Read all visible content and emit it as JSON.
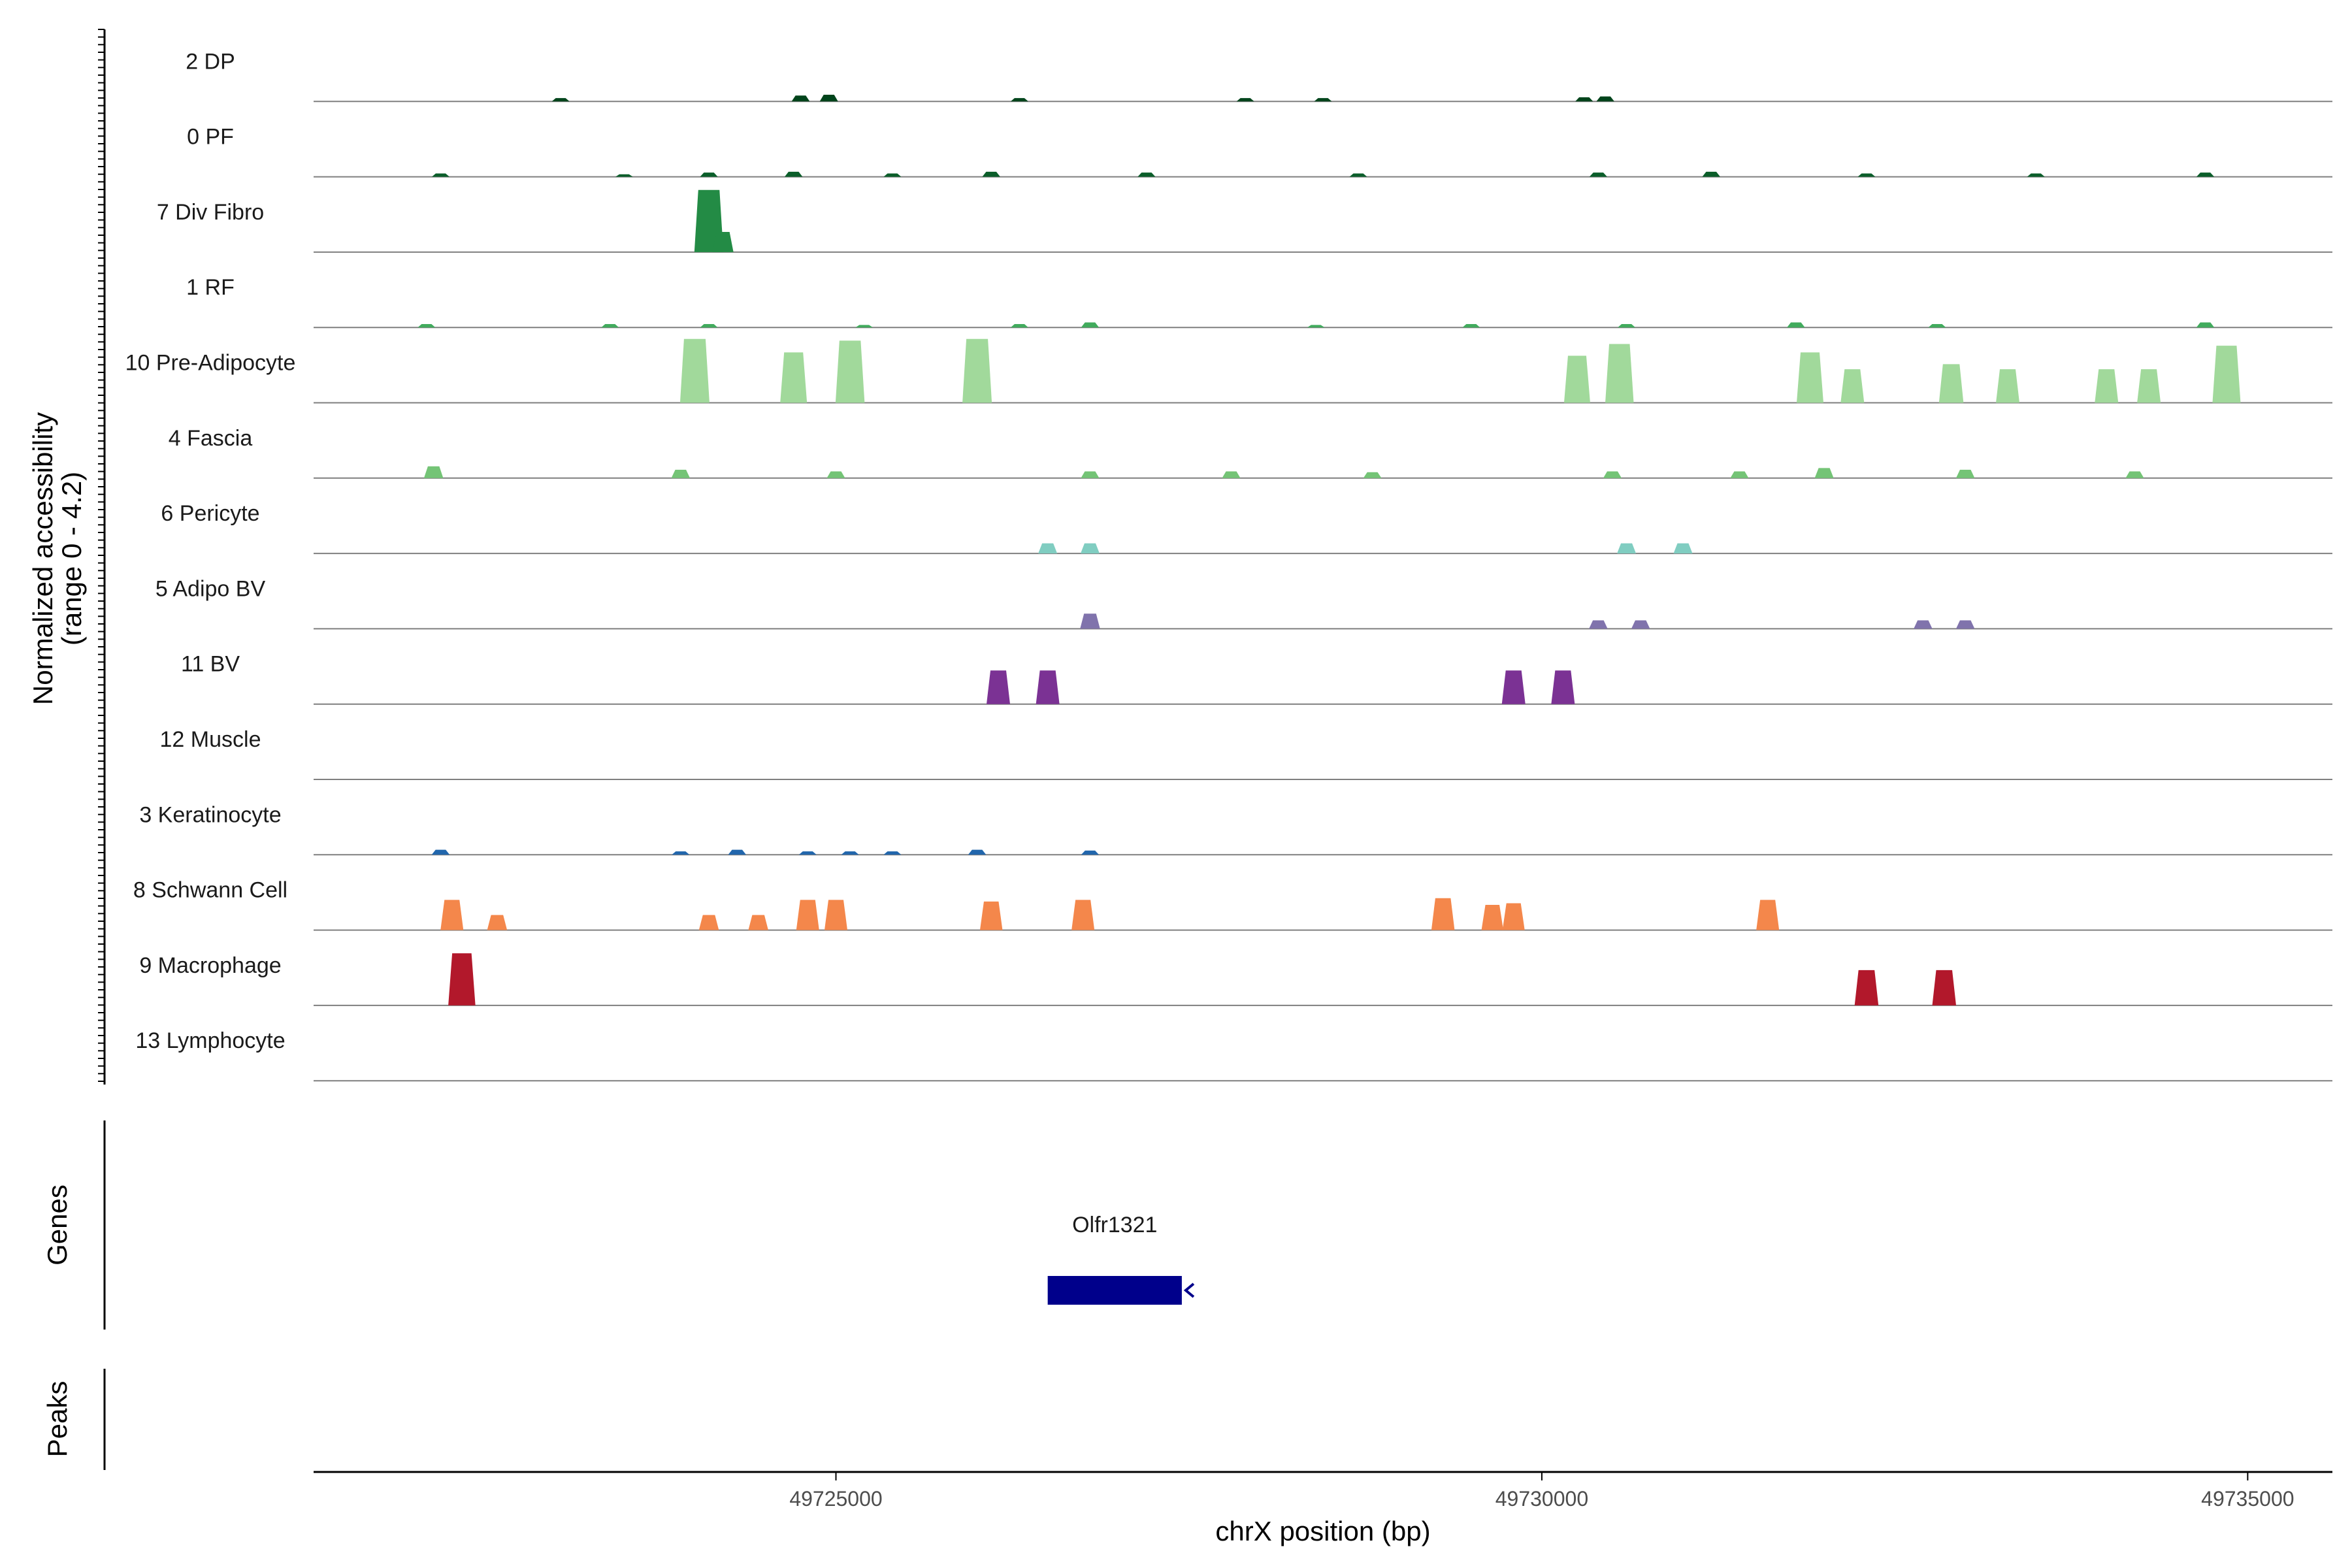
{
  "chart_data": {
    "type": "area",
    "title": "",
    "ylabel_line1": "Normalized accessibility",
    "ylabel_line2": "(range 0 - 4.2)",
    "xlabel": "chrX position (bp)",
    "xlim": [
      49721300,
      49735600
    ],
    "ylim": [
      0,
      4.2
    ],
    "xticks": [
      {
        "value": 49725000,
        "label": "49725000"
      },
      {
        "value": 49730000,
        "label": "49730000"
      },
      {
        "value": 49735000,
        "label": "49735000"
      }
    ],
    "panel_labels": {
      "genes": "Genes",
      "peaks": "Peaks"
    },
    "tracks": [
      {
        "name": "2 DP",
        "color": "#00441b",
        "peaks": [
          [
            49723050,
            0.2
          ],
          [
            49724750,
            0.35
          ],
          [
            49724950,
            0.4
          ],
          [
            49726300,
            0.2
          ],
          [
            49727900,
            0.2
          ],
          [
            49728450,
            0.2
          ],
          [
            49730300,
            0.25
          ],
          [
            49730450,
            0.3
          ]
        ]
      },
      {
        "name": "0 PF",
        "color": "#0b5e2a",
        "peaks": [
          [
            49722200,
            0.2
          ],
          [
            49723500,
            0.15
          ],
          [
            49724100,
            0.25
          ],
          [
            49724700,
            0.3
          ],
          [
            49725400,
            0.2
          ],
          [
            49726100,
            0.3
          ],
          [
            49727200,
            0.25
          ],
          [
            49728700,
            0.2
          ],
          [
            49730400,
            0.25
          ],
          [
            49731200,
            0.3
          ],
          [
            49732300,
            0.2
          ],
          [
            49733500,
            0.2
          ],
          [
            49734700,
            0.25
          ]
        ]
      },
      {
        "name": "7 Div Fibro",
        "color": "#238b45",
        "peaks": [
          [
            49724100,
            3.7
          ],
          [
            49724200,
            1.2
          ]
        ]
      },
      {
        "name": "1 RF",
        "color": "#41ab5d",
        "peaks": [
          [
            49722100,
            0.2
          ],
          [
            49723400,
            0.2
          ],
          [
            49724100,
            0.2
          ],
          [
            49725200,
            0.15
          ],
          [
            49726300,
            0.2
          ],
          [
            49726800,
            0.3
          ],
          [
            49728400,
            0.15
          ],
          [
            49729500,
            0.2
          ],
          [
            49730600,
            0.2
          ],
          [
            49731800,
            0.3
          ],
          [
            49732800,
            0.2
          ],
          [
            49734700,
            0.3
          ]
        ]
      },
      {
        "name": "10 Pre-Adipocyte",
        "color": "#a1d99b",
        "peaks": [
          [
            49724000,
            3.8
          ],
          [
            49724700,
            3.0
          ],
          [
            49725100,
            3.7
          ],
          [
            49726000,
            3.8
          ],
          [
            49730250,
            2.8
          ],
          [
            49730550,
            3.5
          ],
          [
            49731900,
            3.0
          ],
          [
            49732200,
            2.0
          ],
          [
            49732900,
            2.3
          ],
          [
            49733300,
            2.0
          ],
          [
            49734000,
            2.0
          ],
          [
            49734300,
            2.0
          ],
          [
            49734850,
            3.4
          ]
        ]
      },
      {
        "name": "4 Fascia",
        "color": "#74c476",
        "peaks": [
          [
            49722150,
            0.7
          ],
          [
            49723900,
            0.5
          ],
          [
            49725000,
            0.4
          ],
          [
            49726800,
            0.4
          ],
          [
            49727800,
            0.4
          ],
          [
            49728800,
            0.35
          ],
          [
            49730500,
            0.4
          ],
          [
            49731400,
            0.4
          ],
          [
            49732000,
            0.6
          ],
          [
            49733000,
            0.5
          ],
          [
            49734200,
            0.4
          ]
        ]
      },
      {
        "name": "6 Pericyte",
        "color": "#80cdc1",
        "peaks": [
          [
            49726500,
            0.6
          ],
          [
            49726800,
            0.6
          ],
          [
            49730600,
            0.6
          ],
          [
            49731000,
            0.6
          ]
        ]
      },
      {
        "name": "5 Adipo BV",
        "color": "#8073ac",
        "peaks": [
          [
            49726800,
            0.9
          ],
          [
            49730400,
            0.5
          ],
          [
            49730700,
            0.5
          ],
          [
            49732700,
            0.5
          ],
          [
            49733000,
            0.5
          ]
        ]
      },
      {
        "name": "11 BV",
        "color": "#7b3294",
        "peaks": [
          [
            49726150,
            2.0
          ],
          [
            49726500,
            2.0
          ],
          [
            49729800,
            2.0
          ],
          [
            49730150,
            2.0
          ]
        ]
      },
      {
        "name": "12 Muscle",
        "color": "#5e3c99",
        "peaks": []
      },
      {
        "name": "3 Keratinocyte",
        "color": "#2166ac",
        "peaks": [
          [
            49722200,
            0.3
          ],
          [
            49723900,
            0.2
          ],
          [
            49724300,
            0.3
          ],
          [
            49724800,
            0.2
          ],
          [
            49725100,
            0.2
          ],
          [
            49725400,
            0.2
          ],
          [
            49726000,
            0.3
          ],
          [
            49726800,
            0.25
          ]
        ]
      },
      {
        "name": "8 Schwann Cell",
        "color": "#f4874b",
        "peaks": [
          [
            49722280,
            1.8
          ],
          [
            49722600,
            0.9
          ],
          [
            49724100,
            0.9
          ],
          [
            49724450,
            0.9
          ],
          [
            49724800,
            1.8
          ],
          [
            49725000,
            1.8
          ],
          [
            49726100,
            1.7
          ],
          [
            49726750,
            1.8
          ],
          [
            49729300,
            1.9
          ],
          [
            49729650,
            1.5
          ],
          [
            49729800,
            1.6
          ],
          [
            49731600,
            1.8
          ]
        ]
      },
      {
        "name": "9 Macrophage",
        "color": "#b2182b",
        "peaks": [
          [
            49722350,
            3.1
          ],
          [
            49732300,
            2.1
          ],
          [
            49732850,
            2.1
          ]
        ]
      },
      {
        "name": "13 Lymphocyte",
        "color": "#67001f",
        "peaks": []
      }
    ],
    "genes": [
      {
        "name": "Olfr1321",
        "start": 49726500,
        "end": 49727450,
        "strand": "-",
        "color": "#00008b"
      }
    ]
  }
}
